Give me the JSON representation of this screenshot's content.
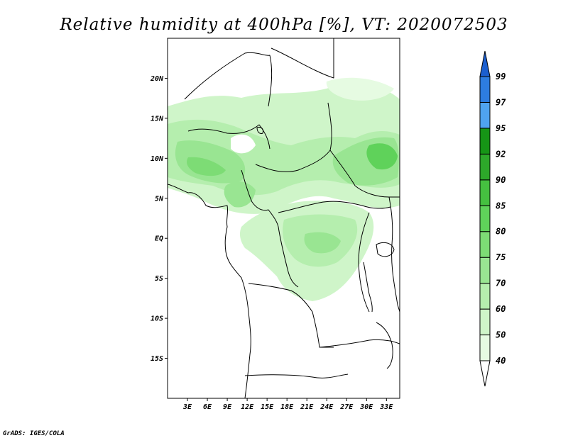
{
  "title": "Relative humidity at 400hPa [%], VT: 2020072503",
  "credit": "GrADS: IGES/COLA",
  "map": {
    "lon_range": [
      0,
      35
    ],
    "lat_range": [
      -20,
      25
    ],
    "lat_ticks": [
      {
        "value": 20,
        "label": "20N"
      },
      {
        "value": 15,
        "label": "15N"
      },
      {
        "value": 10,
        "label": "10N"
      },
      {
        "value": 5,
        "label": "5N"
      },
      {
        "value": 0,
        "label": "EQ"
      },
      {
        "value": -5,
        "label": "5S"
      },
      {
        "value": -10,
        "label": "10S"
      },
      {
        "value": -15,
        "label": "15S"
      }
    ],
    "lon_ticks": [
      {
        "value": 3,
        "label": "3E"
      },
      {
        "value": 6,
        "label": "6E"
      },
      {
        "value": 9,
        "label": "9E"
      },
      {
        "value": 12,
        "label": "12E"
      },
      {
        "value": 15,
        "label": "15E"
      },
      {
        "value": 18,
        "label": "18E"
      },
      {
        "value": 21,
        "label": "21E"
      },
      {
        "value": 24,
        "label": "24E"
      },
      {
        "value": 27,
        "label": "27E"
      },
      {
        "value": 30,
        "label": "30E"
      },
      {
        "value": 33,
        "label": "33E"
      }
    ]
  },
  "colorbar": {
    "levels": [
      "40",
      "50",
      "60",
      "70",
      "75",
      "80",
      "85",
      "90",
      "92",
      "95",
      "97",
      "99"
    ],
    "colors": [
      "#ffffff",
      "#e6fbe2",
      "#cff5c9",
      "#b5eeae",
      "#99e592",
      "#7ddc75",
      "#5fd25a",
      "#45c040",
      "#2da82a",
      "#169516",
      "#4fa3f0",
      "#2d7de0",
      "#1c5fcf"
    ]
  }
}
